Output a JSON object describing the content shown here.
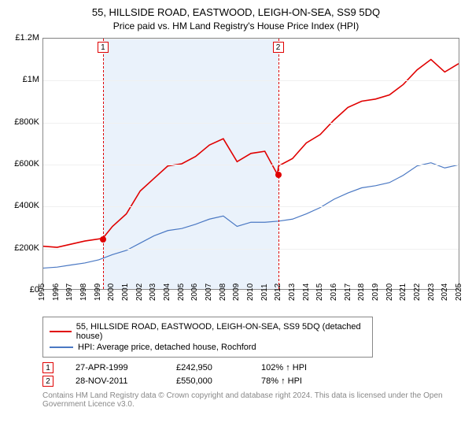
{
  "title": "55, HILLSIDE ROAD, EASTWOOD, LEIGH-ON-SEA, SS9 5DQ",
  "subtitle": "Price paid vs. HM Land Registry's House Price Index (HPI)",
  "chart": {
    "type": "line",
    "ylim": [
      0,
      1200000
    ],
    "ytick_step": 200000,
    "ytick_labels": [
      "£0",
      "£200K",
      "£400K",
      "£600K",
      "£800K",
      "£1M",
      "£1.2M"
    ],
    "xlim": [
      1995,
      2025
    ],
    "xtick_step": 1,
    "background_color": "#ffffff",
    "grid_color": "#f0f0f0",
    "band_color": "#eaf2fb",
    "band_range": [
      1999.3,
      2011.9
    ],
    "series": [
      {
        "name": "55, HILLSIDE ROAD, EASTWOOD, LEIGH-ON-SEA, SS9 5DQ (detached house)",
        "color": "#e00000",
        "line_width": 1.6,
        "data": [
          [
            1995,
            205000
          ],
          [
            1996,
            200000
          ],
          [
            1997,
            215000
          ],
          [
            1998,
            230000
          ],
          [
            1999.3,
            242950
          ],
          [
            2000,
            300000
          ],
          [
            2001,
            360000
          ],
          [
            2002,
            470000
          ],
          [
            2003,
            530000
          ],
          [
            2004,
            590000
          ],
          [
            2005,
            600000
          ],
          [
            2006,
            635000
          ],
          [
            2007,
            690000
          ],
          [
            2008,
            720000
          ],
          [
            2009,
            610000
          ],
          [
            2010,
            650000
          ],
          [
            2011,
            660000
          ],
          [
            2011.9,
            550000
          ],
          [
            2012,
            590000
          ],
          [
            2013,
            625000
          ],
          [
            2014,
            700000
          ],
          [
            2015,
            740000
          ],
          [
            2016,
            810000
          ],
          [
            2017,
            870000
          ],
          [
            2018,
            900000
          ],
          [
            2019,
            910000
          ],
          [
            2020,
            930000
          ],
          [
            2021,
            980000
          ],
          [
            2022,
            1050000
          ],
          [
            2023,
            1100000
          ],
          [
            2024,
            1040000
          ],
          [
            2025,
            1080000
          ]
        ]
      },
      {
        "name": "HPI: Average price, detached house, Rochford",
        "color": "#4a78c3",
        "line_width": 1.2,
        "data": [
          [
            1995,
            100000
          ],
          [
            1996,
            105000
          ],
          [
            1997,
            115000
          ],
          [
            1998,
            125000
          ],
          [
            1999,
            140000
          ],
          [
            2000,
            165000
          ],
          [
            2001,
            185000
          ],
          [
            2002,
            220000
          ],
          [
            2003,
            255000
          ],
          [
            2004,
            280000
          ],
          [
            2005,
            290000
          ],
          [
            2006,
            310000
          ],
          [
            2007,
            335000
          ],
          [
            2008,
            350000
          ],
          [
            2009,
            300000
          ],
          [
            2010,
            320000
          ],
          [
            2011,
            320000
          ],
          [
            2012,
            325000
          ],
          [
            2013,
            335000
          ],
          [
            2014,
            360000
          ],
          [
            2015,
            390000
          ],
          [
            2016,
            430000
          ],
          [
            2017,
            460000
          ],
          [
            2018,
            485000
          ],
          [
            2019,
            495000
          ],
          [
            2020,
            510000
          ],
          [
            2021,
            545000
          ],
          [
            2022,
            590000
          ],
          [
            2023,
            605000
          ],
          [
            2024,
            580000
          ],
          [
            2025,
            595000
          ]
        ]
      }
    ],
    "markers": [
      {
        "n": "1",
        "x": 1999.3,
        "y": 242950
      },
      {
        "n": "2",
        "x": 2011.9,
        "y": 550000
      }
    ]
  },
  "legend": {
    "items": [
      {
        "color": "#e00000",
        "label": "55, HILLSIDE ROAD, EASTWOOD, LEIGH-ON-SEA, SS9 5DQ (detached house)"
      },
      {
        "color": "#4a78c3",
        "label": "HPI: Average price, detached house, Rochford"
      }
    ]
  },
  "transactions": [
    {
      "n": "1",
      "date": "27-APR-1999",
      "price": "£242,950",
      "pct": "102% ↑ HPI"
    },
    {
      "n": "2",
      "date": "28-NOV-2011",
      "price": "£550,000",
      "pct": "78% ↑ HPI"
    }
  ],
  "attribution": "Contains HM Land Registry data © Crown copyright and database right 2024.\nThis data is licensed under the Open Government Licence v3.0."
}
